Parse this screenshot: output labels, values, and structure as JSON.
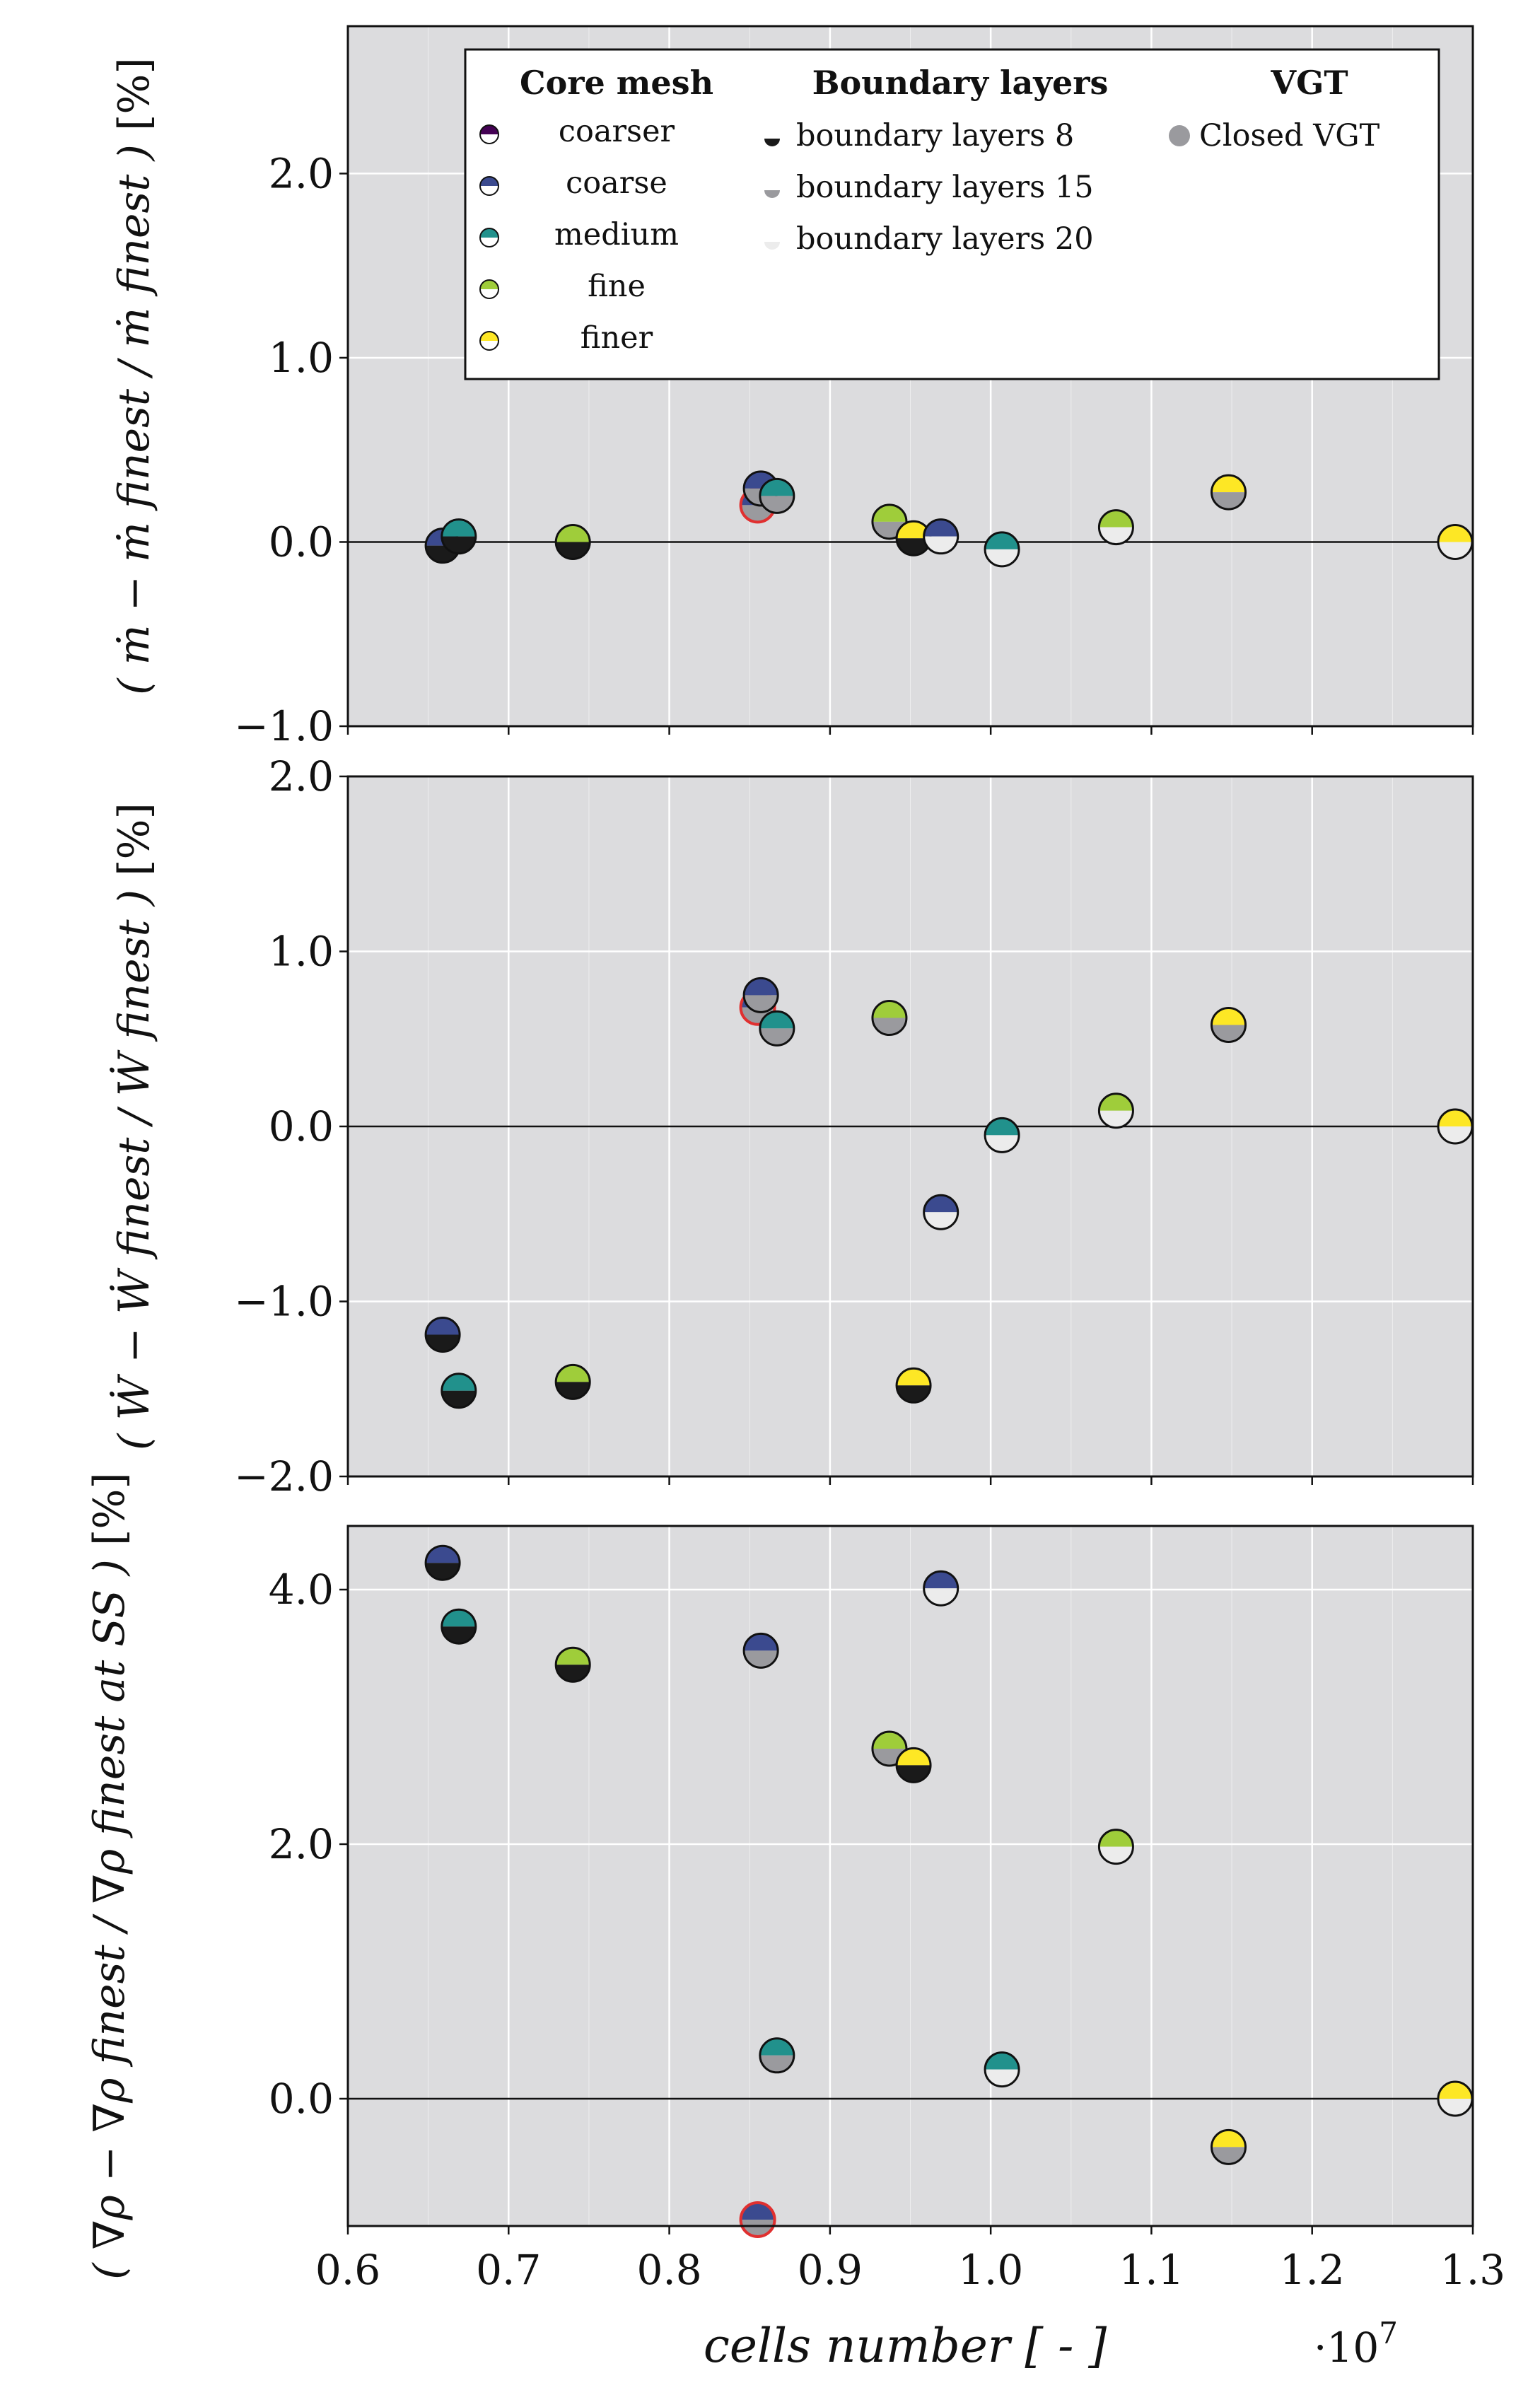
{
  "chart_data": {
    "type": "scatter",
    "x_axis": {
      "label": "cells number [ - ]",
      "multiplier": "·10",
      "exponent": "7",
      "range": [
        0.6,
        1.3
      ],
      "ticks": [
        "0.6",
        "0.7",
        "0.8",
        "0.9",
        "1.0",
        "1.1",
        "1.2",
        "1.3"
      ]
    },
    "colors": {
      "core": {
        "coarser": "#440154",
        "coarse": "#3b4a8f",
        "medium": "#21918c",
        "fine": "#9fcd3a",
        "finer": "#fde725"
      },
      "boundary": {
        "bl8": "#1a1a1a",
        "bl15": "#9a9a9e",
        "bl20": "#ececec"
      },
      "highlight_ring": "#e03030",
      "panel_bg": "#dcdcde",
      "grid": "#ffffff"
    },
    "legend": {
      "core_title": "Core mesh",
      "bl_title": "Boundary layers",
      "vgt_title": "VGT",
      "core_items": [
        {
          "key": "coarser",
          "label": "coarser"
        },
        {
          "key": "coarse",
          "label": "coarse"
        },
        {
          "key": "medium",
          "label": "medium"
        },
        {
          "key": "fine",
          "label": "fine"
        },
        {
          "key": "finer",
          "label": "finer"
        }
      ],
      "bl_items": [
        {
          "key": "bl8",
          "label": "boundary layers 8"
        },
        {
          "key": "bl15",
          "label": "boundary layers 15"
        },
        {
          "key": "bl20",
          "label": "boundary layers 20"
        }
      ],
      "vgt_items": [
        {
          "label": "Closed VGT"
        }
      ]
    },
    "panels": [
      {
        "ylabel_expr": "ṁ − ṁ finest / ṁ finest",
        "yunit": "[%]",
        "ylim": [
          -1.0,
          2.8
        ],
        "yticks": [
          {
            "v": -1.0,
            "t": "−1.0"
          },
          {
            "v": 0.0,
            "t": "0.0"
          },
          {
            "v": 1.0,
            "t": "1.0"
          },
          {
            "v": 2.0,
            "t": "2.0"
          }
        ],
        "points": [
          {
            "x": 0.659,
            "y": -0.02,
            "core": "coarse",
            "bl": "bl8"
          },
          {
            "x": 0.669,
            "y": 0.03,
            "core": "medium",
            "bl": "bl8"
          },
          {
            "x": 0.74,
            "y": 0.0,
            "core": "fine",
            "bl": "bl8"
          },
          {
            "x": 0.855,
            "y": 0.2,
            "core": "coarse",
            "bl": "bl15",
            "vgt": true
          },
          {
            "x": 0.857,
            "y": 0.29,
            "core": "coarse",
            "bl": "bl15"
          },
          {
            "x": 0.867,
            "y": 0.25,
            "core": "medium",
            "bl": "bl15"
          },
          {
            "x": 0.937,
            "y": 0.11,
            "core": "fine",
            "bl": "bl15"
          },
          {
            "x": 0.952,
            "y": 0.02,
            "core": "finer",
            "bl": "bl8"
          },
          {
            "x": 0.969,
            "y": 0.03,
            "core": "coarse",
            "bl": "bl20"
          },
          {
            "x": 1.007,
            "y": -0.04,
            "core": "medium",
            "bl": "bl20"
          },
          {
            "x": 1.078,
            "y": 0.08,
            "core": "fine",
            "bl": "bl20"
          },
          {
            "x": 1.148,
            "y": 0.27,
            "core": "finer",
            "bl": "bl15"
          },
          {
            "x": 1.289,
            "y": 0.0,
            "core": "finer",
            "bl": "bl20"
          }
        ]
      },
      {
        "ylabel_expr": "Ẇ − Ẇ finest / Ẇ finest",
        "yunit": "[%]",
        "ylim": [
          -2.0,
          2.0
        ],
        "yticks": [
          {
            "v": -2.0,
            "t": "−2.0"
          },
          {
            "v": -1.0,
            "t": "−1.0"
          },
          {
            "v": 0.0,
            "t": "0.0"
          },
          {
            "v": 1.0,
            "t": "1.0"
          },
          {
            "v": 2.0,
            "t": "2.0"
          }
        ],
        "points": [
          {
            "x": 0.659,
            "y": -1.19,
            "core": "coarse",
            "bl": "bl8"
          },
          {
            "x": 0.669,
            "y": -1.51,
            "core": "medium",
            "bl": "bl8"
          },
          {
            "x": 0.74,
            "y": -1.46,
            "core": "fine",
            "bl": "bl8"
          },
          {
            "x": 0.855,
            "y": 0.68,
            "core": "coarse",
            "bl": "bl15",
            "vgt": true
          },
          {
            "x": 0.857,
            "y": 0.75,
            "core": "coarse",
            "bl": "bl15"
          },
          {
            "x": 0.867,
            "y": 0.56,
            "core": "medium",
            "bl": "bl15"
          },
          {
            "x": 0.937,
            "y": 0.62,
            "core": "fine",
            "bl": "bl15"
          },
          {
            "x": 0.952,
            "y": -1.48,
            "core": "finer",
            "bl": "bl8"
          },
          {
            "x": 0.969,
            "y": -0.49,
            "core": "coarse",
            "bl": "bl20"
          },
          {
            "x": 1.007,
            "y": -0.05,
            "core": "medium",
            "bl": "bl20"
          },
          {
            "x": 1.078,
            "y": 0.09,
            "core": "fine",
            "bl": "bl20"
          },
          {
            "x": 1.148,
            "y": 0.58,
            "core": "finer",
            "bl": "bl15"
          },
          {
            "x": 1.289,
            "y": 0.0,
            "core": "finer",
            "bl": "bl20"
          }
        ]
      },
      {
        "ylabel_expr": "∇ρ − ∇ρ finest / ∇ρ finest at SS",
        "yunit": "[%]",
        "ylim": [
          -1.0,
          4.5
        ],
        "yticks": [
          {
            "v": 0.0,
            "t": "0.0"
          },
          {
            "v": 2.0,
            "t": "2.0"
          },
          {
            "v": 4.0,
            "t": "4.0"
          }
        ],
        "points": [
          {
            "x": 0.659,
            "y": 4.21,
            "core": "coarse",
            "bl": "bl8"
          },
          {
            "x": 0.669,
            "y": 3.71,
            "core": "medium",
            "bl": "bl8"
          },
          {
            "x": 0.74,
            "y": 3.41,
            "core": "fine",
            "bl": "bl8"
          },
          {
            "x": 0.855,
            "y": -0.95,
            "core": "coarse",
            "bl": "bl15",
            "vgt": true
          },
          {
            "x": 0.857,
            "y": 3.52,
            "core": "coarse",
            "bl": "bl15"
          },
          {
            "x": 0.867,
            "y": 0.34,
            "core": "medium",
            "bl": "bl15"
          },
          {
            "x": 0.937,
            "y": 2.75,
            "core": "fine",
            "bl": "bl15"
          },
          {
            "x": 0.952,
            "y": 2.62,
            "core": "finer",
            "bl": "bl8"
          },
          {
            "x": 0.969,
            "y": 4.01,
            "core": "coarse",
            "bl": "bl20"
          },
          {
            "x": 1.007,
            "y": 0.23,
            "core": "medium",
            "bl": "bl20"
          },
          {
            "x": 1.078,
            "y": 1.98,
            "core": "fine",
            "bl": "bl20"
          },
          {
            "x": 1.148,
            "y": -0.38,
            "core": "finer",
            "bl": "bl15"
          },
          {
            "x": 1.289,
            "y": 0.0,
            "core": "finer",
            "bl": "bl20"
          }
        ]
      }
    ]
  }
}
